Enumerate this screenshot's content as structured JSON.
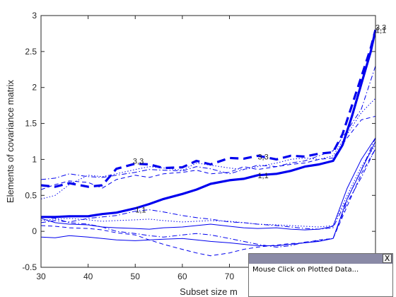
{
  "chart_data": {
    "type": "line",
    "xlabel": "Subset size m",
    "ylabel": "Elements of covariance matrix",
    "xlim": [
      30,
      101
    ],
    "ylim": [
      -0.5,
      3
    ],
    "xticks": [
      30,
      40,
      50,
      60,
      70
    ],
    "yticks": [
      -0.5,
      0,
      0.5,
      1,
      1.5,
      2,
      2.5,
      3
    ],
    "grid": false,
    "colors": {
      "series": "#0000ee",
      "axis": "#262626"
    },
    "series": [
      {
        "style": "thick-dashed",
        "x": [
          30,
          33,
          36,
          40,
          43,
          46,
          50,
          53,
          56,
          60,
          63,
          66,
          70,
          73,
          76,
          80,
          83,
          86,
          89,
          92,
          94,
          96,
          98,
          100,
          101
        ],
        "y": [
          0.64,
          0.62,
          0.67,
          0.62,
          0.64,
          0.87,
          0.94,
          0.93,
          0.88,
          0.89,
          0.98,
          0.93,
          1.02,
          1.01,
          1.05,
          1.0,
          1.05,
          1.04,
          1.08,
          1.1,
          1.35,
          1.75,
          2.15,
          2.55,
          2.8
        ]
      },
      {
        "style": "thick-solid",
        "x": [
          30,
          33,
          36,
          40,
          43,
          46,
          50,
          53,
          56,
          60,
          63,
          66,
          70,
          73,
          76,
          80,
          83,
          86,
          89,
          92,
          94,
          96,
          98,
          100,
          101
        ],
        "y": [
          0.2,
          0.2,
          0.21,
          0.21,
          0.24,
          0.26,
          0.32,
          0.38,
          0.45,
          0.52,
          0.58,
          0.66,
          0.71,
          0.73,
          0.78,
          0.8,
          0.84,
          0.9,
          0.93,
          0.98,
          1.2,
          1.6,
          2.05,
          2.5,
          2.8
        ]
      },
      {
        "style": "dotted",
        "x": [
          30,
          33,
          36,
          40,
          43,
          46,
          50,
          53,
          56,
          60,
          63,
          66,
          70,
          73,
          76,
          80,
          83,
          86,
          89,
          92,
          95,
          98,
          101
        ],
        "y": [
          0.45,
          0.5,
          0.65,
          0.78,
          0.76,
          0.8,
          0.86,
          0.9,
          0.88,
          0.85,
          0.95,
          0.92,
          0.88,
          0.86,
          0.9,
          0.95,
          1.0,
          1.02,
          1.0,
          1.05,
          1.35,
          1.65,
          1.85
        ]
      },
      {
        "style": "thin-dashed",
        "x": [
          30,
          33,
          36,
          40,
          43,
          46,
          50,
          53,
          56,
          60,
          63,
          66,
          70,
          73,
          76,
          80,
          83,
          86,
          89,
          92,
          95,
          98,
          101
        ],
        "y": [
          0.58,
          0.65,
          0.7,
          0.68,
          0.6,
          0.72,
          0.78,
          0.75,
          0.8,
          0.82,
          0.85,
          0.8,
          0.82,
          0.9,
          0.86,
          0.9,
          0.93,
          0.95,
          1.0,
          1.02,
          1.3,
          1.55,
          1.6
        ]
      },
      {
        "style": "dash-dot",
        "x": [
          30,
          33,
          36,
          40,
          43,
          46,
          50,
          53,
          56,
          60,
          63,
          66,
          70,
          73,
          76,
          80,
          83,
          86,
          89,
          92,
          95,
          98,
          101
        ],
        "y": [
          0.72,
          0.74,
          0.8,
          0.76,
          0.75,
          0.78,
          0.82,
          0.86,
          0.85,
          0.84,
          0.9,
          0.87,
          0.8,
          0.86,
          0.92,
          0.9,
          0.95,
          0.98,
          1.05,
          1.12,
          1.4,
          1.7,
          2.3
        ]
      },
      {
        "style": "dash-dot",
        "x": [
          30,
          33,
          36,
          40,
          43,
          46,
          50,
          53,
          56,
          60,
          63,
          66,
          70,
          73,
          76,
          80,
          83,
          86,
          89,
          92,
          95,
          98,
          101
        ],
        "y": [
          0.12,
          0.15,
          0.13,
          0.18,
          0.2,
          0.22,
          0.28,
          0.3,
          0.27,
          0.22,
          0.19,
          0.17,
          0.13,
          0.12,
          0.1,
          0.08,
          0.06,
          0.04,
          0.03,
          0.05,
          0.45,
          0.85,
          1.3
        ]
      },
      {
        "style": "dotted",
        "x": [
          30,
          33,
          36,
          40,
          43,
          46,
          50,
          53,
          56,
          60,
          63,
          66,
          70,
          73,
          76,
          80,
          83,
          86,
          89,
          92,
          95,
          98,
          101
        ],
        "y": [
          0.15,
          0.17,
          0.18,
          0.16,
          0.14,
          0.15,
          0.16,
          0.17,
          0.15,
          0.13,
          0.14,
          0.15,
          0.14,
          0.12,
          0.1,
          0.09,
          0.08,
          0.07,
          0.06,
          0.08,
          0.5,
          0.9,
          1.2
        ]
      },
      {
        "style": "thin-solid",
        "x": [
          30,
          33,
          36,
          40,
          43,
          46,
          50,
          53,
          56,
          60,
          63,
          66,
          70,
          73,
          76,
          80,
          83,
          86,
          89,
          92,
          95,
          98,
          101
        ],
        "y": [
          0.18,
          0.12,
          0.1,
          0.09,
          0.06,
          0.05,
          0.04,
          0.03,
          0.05,
          0.06,
          0.08,
          0.1,
          0.07,
          0.05,
          0.04,
          0.05,
          0.03,
          0.02,
          0.03,
          0.07,
          0.6,
          1.0,
          1.3
        ]
      },
      {
        "style": "thin-dashed",
        "x": [
          30,
          33,
          36,
          40,
          43,
          46,
          50,
          53,
          56,
          60,
          63,
          66,
          70,
          73,
          76,
          80,
          83,
          86,
          89,
          92,
          95,
          98,
          101
        ],
        "y": [
          0.08,
          0.07,
          0.05,
          0.04,
          0.02,
          -0.02,
          -0.05,
          -0.12,
          -0.18,
          -0.25,
          -0.3,
          -0.34,
          -0.3,
          -0.25,
          -0.22,
          -0.19,
          -0.17,
          -0.16,
          -0.12,
          -0.1,
          0.35,
          0.8,
          1.15
        ]
      },
      {
        "style": "thin-solid",
        "x": [
          30,
          33,
          36,
          40,
          43,
          46,
          50,
          53,
          56,
          60,
          63,
          66,
          70,
          73,
          76,
          80,
          83,
          86,
          89,
          92,
          95,
          98,
          101
        ],
        "y": [
          -0.08,
          -0.09,
          -0.06,
          -0.08,
          -0.1,
          -0.12,
          -0.13,
          -0.12,
          -0.11,
          -0.1,
          -0.12,
          -0.14,
          -0.16,
          -0.18,
          -0.2,
          -0.2,
          -0.18,
          -0.16,
          -0.14,
          -0.1,
          0.45,
          0.85,
          1.25
        ]
      },
      {
        "style": "dash-dot",
        "x": [
          30,
          33,
          36,
          40,
          43,
          46,
          50,
          53,
          56,
          60,
          63,
          66,
          70,
          73,
          76,
          80,
          83,
          86,
          89,
          92,
          95,
          98,
          101
        ],
        "y": [
          0.2,
          0.18,
          0.12,
          0.1,
          0.06,
          0.0,
          -0.03,
          -0.06,
          -0.08,
          -0.05,
          -0.03,
          -0.05,
          -0.1,
          -0.14,
          -0.18,
          -0.22,
          -0.2,
          -0.15,
          -0.13,
          -0.1,
          0.4,
          0.75,
          1.15
        ]
      }
    ],
    "annotations": [
      {
        "text": "3,3",
        "x": 49.5,
        "y": 0.94
      },
      {
        "text": "3,3",
        "x": 76,
        "y": 1.0
      },
      {
        "text": "1,1",
        "x": 76,
        "y": 0.74
      },
      {
        "text": "1,1",
        "x": 50,
        "y": 0.26
      },
      {
        "text": "3,3",
        "x": 101,
        "y": 2.8
      },
      {
        "text": "1,1",
        "x": 101,
        "y": 2.76
      }
    ]
  },
  "popup": {
    "message": "Mouse Click on Plotted Data...",
    "close_label": "X"
  }
}
